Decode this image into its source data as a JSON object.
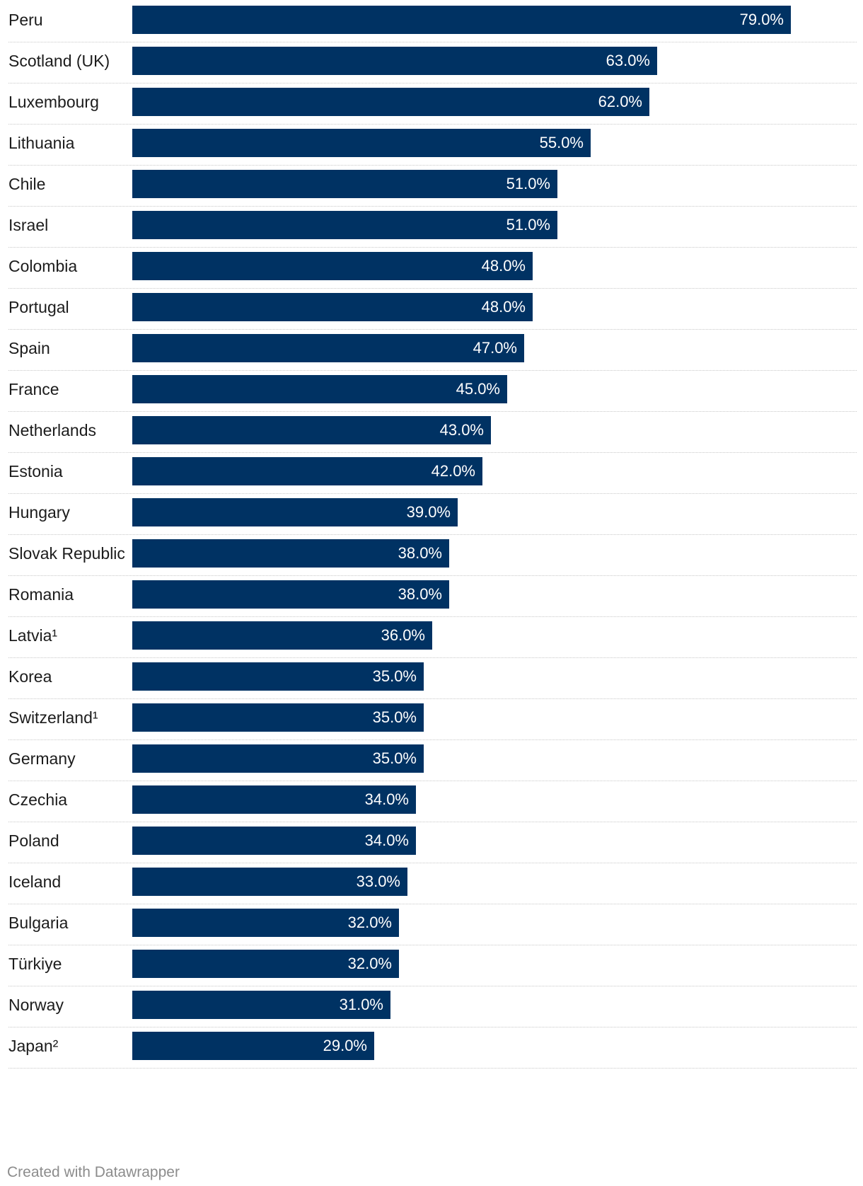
{
  "chart_data": {
    "type": "bar",
    "orientation": "horizontal",
    "categories": [
      "Peru",
      "Scotland (UK)",
      "Luxembourg",
      "Lithuania",
      "Chile",
      "Israel",
      "Colombia",
      "Portugal",
      "Spain",
      "France",
      "Netherlands",
      "Estonia",
      "Hungary",
      "Slovak Republic",
      "Romania",
      "Latvia¹",
      "Korea",
      "Switzerland¹",
      "Germany",
      "Czechia",
      "Poland",
      "Iceland",
      "Bulgaria",
      "Türkiye",
      "Norway",
      "Japan²"
    ],
    "values": [
      79.0,
      63.0,
      62.0,
      55.0,
      51.0,
      51.0,
      48.0,
      48.0,
      47.0,
      45.0,
      43.0,
      42.0,
      39.0,
      38.0,
      38.0,
      36.0,
      35.0,
      35.0,
      35.0,
      34.0,
      34.0,
      33.0,
      32.0,
      32.0,
      31.0,
      29.0
    ],
    "value_labels": [
      "79.0%",
      "63.0%",
      "62.0%",
      "55.0%",
      "51.0%",
      "51.0%",
      "48.0%",
      "48.0%",
      "47.0%",
      "45.0%",
      "43.0%",
      "42.0%",
      "39.0%",
      "38.0%",
      "38.0%",
      "36.0%",
      "35.0%",
      "35.0%",
      "35.0%",
      "34.0%",
      "34.0%",
      "33.0%",
      "32.0%",
      "32.0%",
      "31.0%",
      "29.0%"
    ],
    "unit": "%",
    "xlim": [
      0,
      79
    ],
    "bar_color": "#003263",
    "value_label_color": "#ffffff",
    "grid": false
  },
  "footer": {
    "credit": "Created with Datawrapper"
  }
}
